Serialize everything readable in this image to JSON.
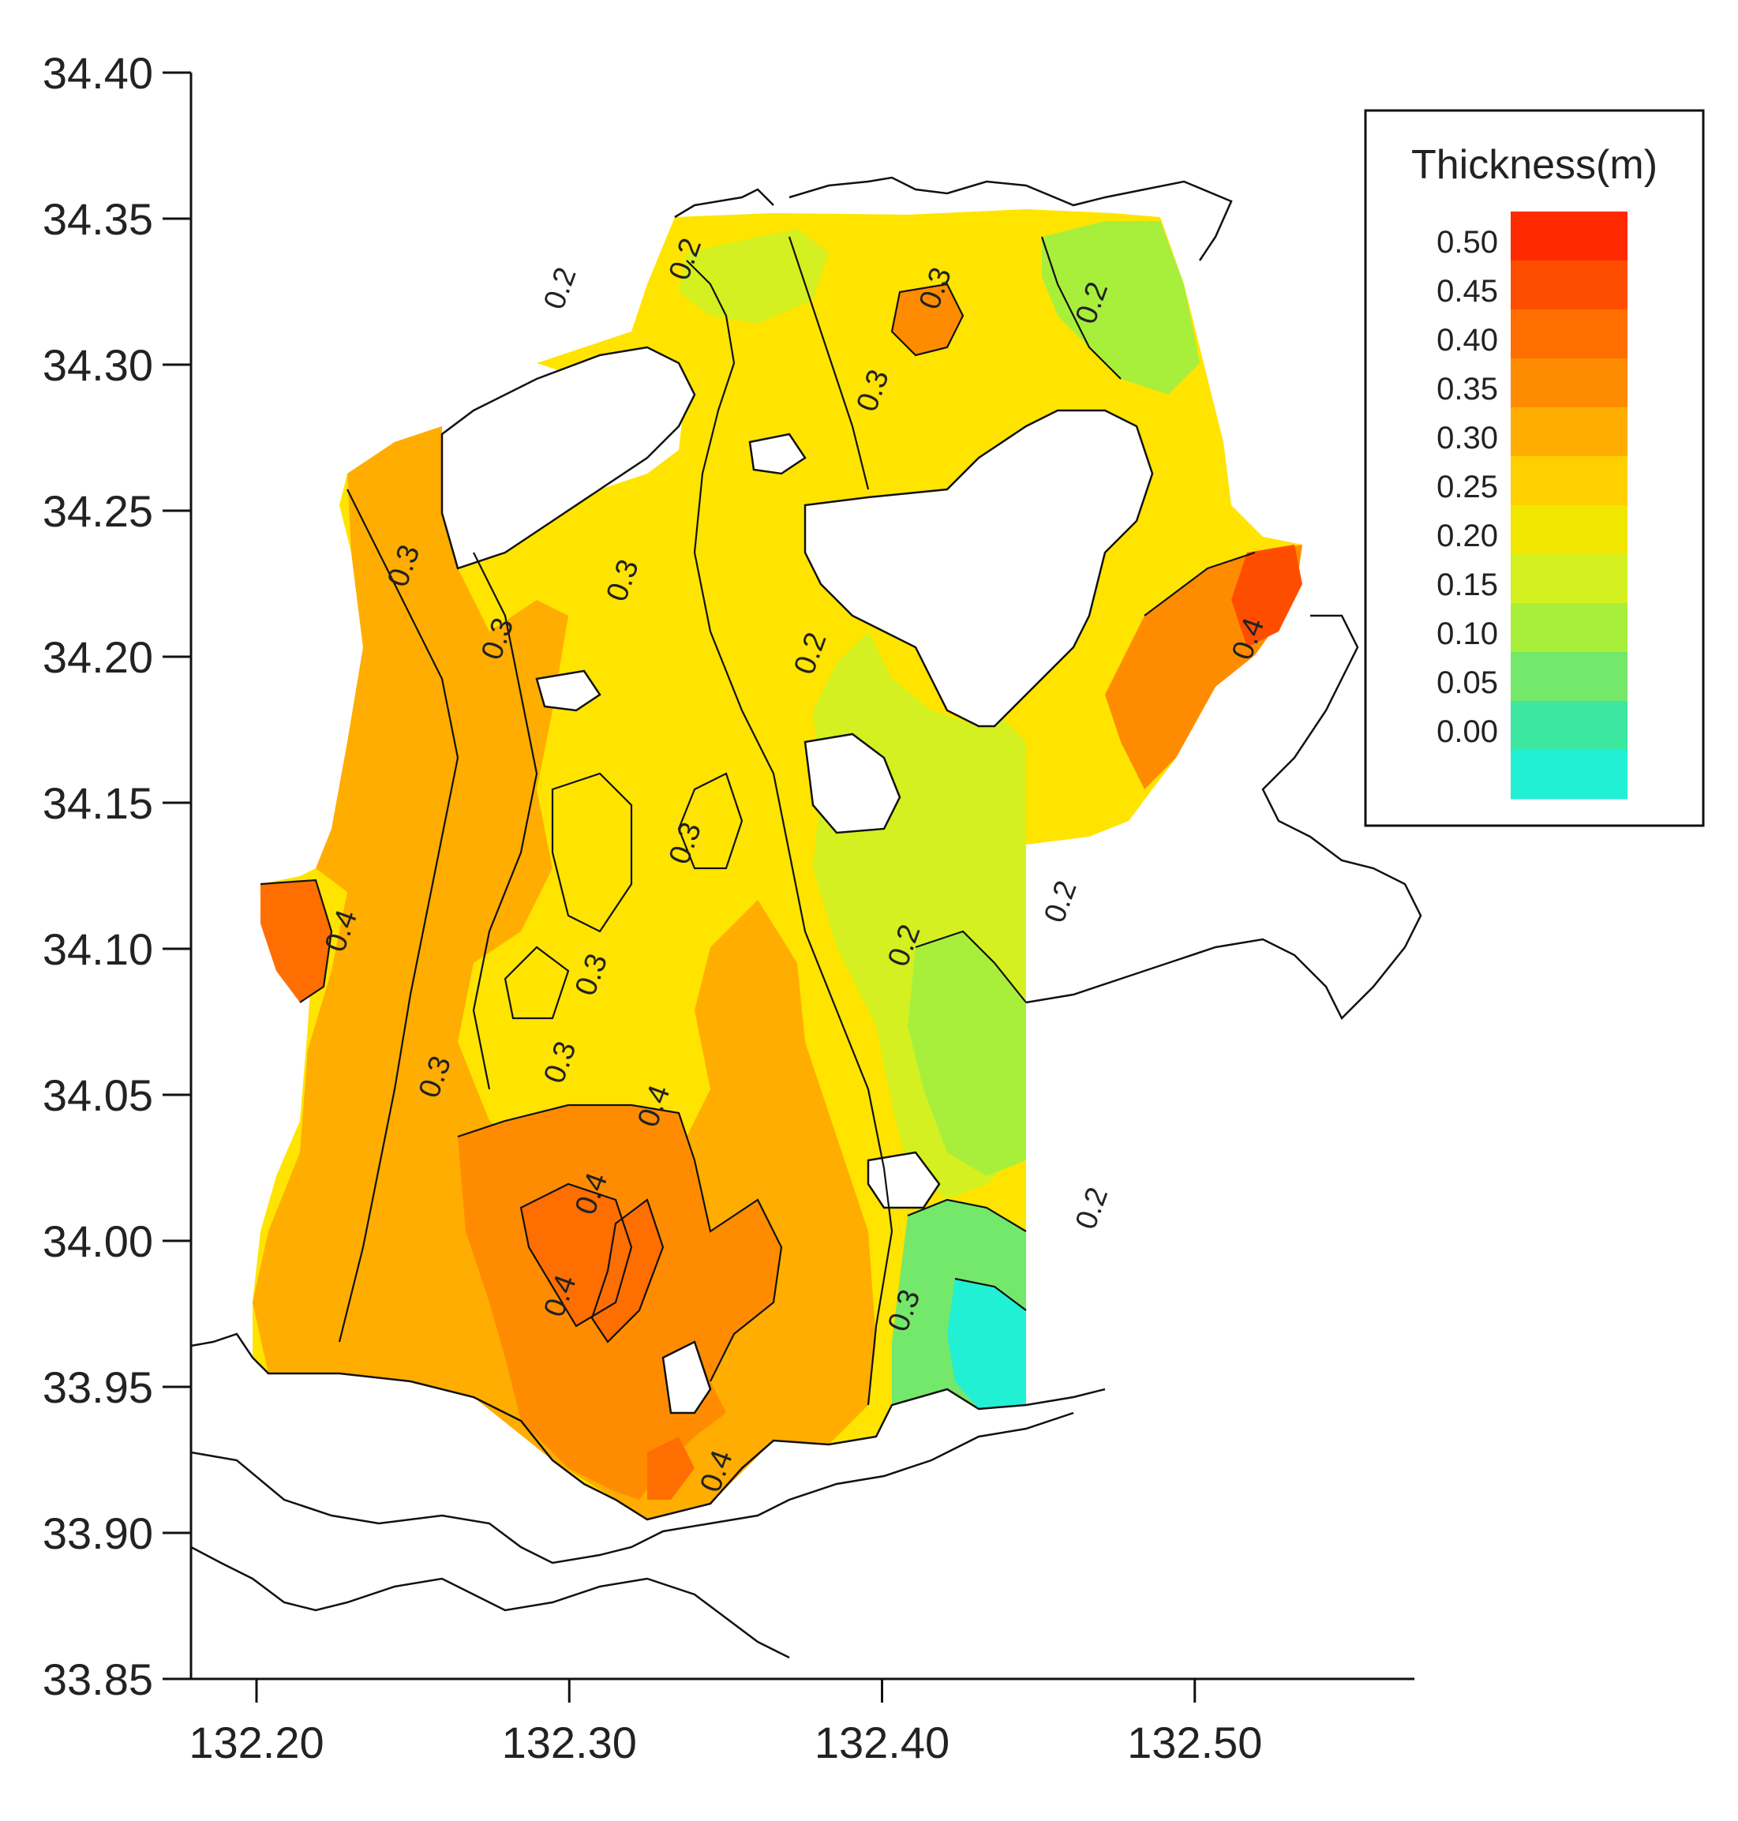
{
  "map": {
    "x_ticks": [
      "132.20",
      "132.30",
      "132.40",
      "132.50"
    ],
    "y_ticks": [
      "34.40",
      "34.35",
      "34.30",
      "34.25",
      "34.20",
      "34.15",
      "34.10",
      "34.05",
      "34.00",
      "33.95",
      "33.90",
      "33.85"
    ],
    "x_range": [
      132.18,
      132.58
    ],
    "y_range": [
      33.85,
      34.4
    ],
    "contour_labels": [
      {
        "text": "0.2",
        "lon": 132.3,
        "lat": 34.325
      },
      {
        "text": "0.2",
        "lon": 132.34,
        "lat": 34.335
      },
      {
        "text": "0.3",
        "lon": 132.42,
        "lat": 34.325
      },
      {
        "text": "0.2",
        "lon": 132.47,
        "lat": 34.32
      },
      {
        "text": "0.3",
        "lon": 132.4,
        "lat": 34.29
      },
      {
        "text": "0.3",
        "lon": 132.25,
        "lat": 34.23
      },
      {
        "text": "0.3",
        "lon": 132.28,
        "lat": 34.205
      },
      {
        "text": "0.3",
        "lon": 132.32,
        "lat": 34.225
      },
      {
        "text": "0.2",
        "lon": 132.38,
        "lat": 34.2
      },
      {
        "text": "0.4",
        "lon": 132.52,
        "lat": 34.205
      },
      {
        "text": "0.3",
        "lon": 132.34,
        "lat": 34.135
      },
      {
        "text": "0.4",
        "lon": 132.23,
        "lat": 34.105
      },
      {
        "text": "0.2",
        "lon": 132.41,
        "lat": 34.1
      },
      {
        "text": "0.2",
        "lon": 132.46,
        "lat": 34.115
      },
      {
        "text": "0.3",
        "lon": 132.31,
        "lat": 34.09
      },
      {
        "text": "0.3",
        "lon": 132.3,
        "lat": 34.06
      },
      {
        "text": "0.3",
        "lon": 132.26,
        "lat": 34.055
      },
      {
        "text": "0.4",
        "lon": 132.33,
        "lat": 34.045
      },
      {
        "text": "0.4",
        "lon": 132.31,
        "lat": 34.015
      },
      {
        "text": "0.4",
        "lon": 132.3,
        "lat": 33.98
      },
      {
        "text": "0.2",
        "lon": 132.47,
        "lat": 34.01
      },
      {
        "text": "0.3",
        "lon": 132.41,
        "lat": 33.975
      },
      {
        "text": "0.4",
        "lon": 132.35,
        "lat": 33.92
      }
    ]
  },
  "legend": {
    "title": "Thickness(m)",
    "labels": [
      "0.50",
      "0.45",
      "0.40",
      "0.35",
      "0.30",
      "0.25",
      "0.20",
      "0.15",
      "0.10",
      "0.05",
      "0.00"
    ],
    "colors": [
      "#ff2a00",
      "#ff4d00",
      "#ff6e00",
      "#ff8c00",
      "#ffad00",
      "#ffd000",
      "#f0e600",
      "#d4f020",
      "#a8ef3c",
      "#74e86a",
      "#3ce8a0",
      "#22f0d4"
    ]
  }
}
